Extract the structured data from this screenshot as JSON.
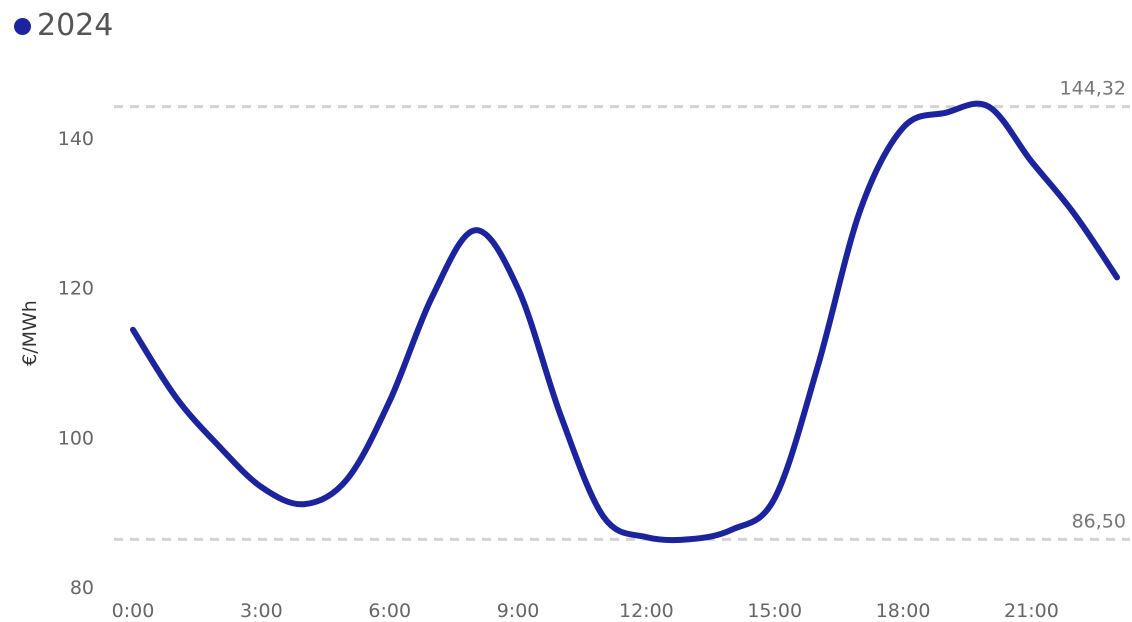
{
  "chart_data": {
    "type": "line",
    "ylabel": "€/MWh",
    "xlabel": "",
    "x": [
      0,
      1,
      2,
      3,
      4,
      5,
      6,
      7,
      8,
      9,
      10,
      11,
      12,
      13,
      14,
      15,
      16,
      17,
      18,
      19,
      20,
      21,
      22,
      23
    ],
    "x_tick_values": [
      0,
      3,
      6,
      9,
      12,
      15,
      18,
      21
    ],
    "x_tick_labels": [
      "0:00",
      "3:00",
      "6:00",
      "9:00",
      "12:00",
      "15:00",
      "18:00",
      "21:00"
    ],
    "ylim": [
      80,
      146
    ],
    "y_ticks": [
      80,
      100,
      120,
      140
    ],
    "series": [
      {
        "name": "2024",
        "color": "#1B249E",
        "values": [
          114.5,
          105.5,
          99,
          93.5,
          91.2,
          94.5,
          105,
          119,
          127.8,
          120,
          103,
          89.5,
          86.8,
          86.5,
          87.8,
          92,
          109.5,
          130.5,
          141.5,
          143.5,
          144.32,
          137,
          130,
          121.5
        ]
      }
    ],
    "reference_lines": [
      {
        "value": 144.32,
        "label": "144,32",
        "style": "dashed"
      },
      {
        "value": 86.5,
        "label": "86,50",
        "style": "dashed"
      }
    ],
    "grid": false,
    "legend_position": "top-left"
  }
}
